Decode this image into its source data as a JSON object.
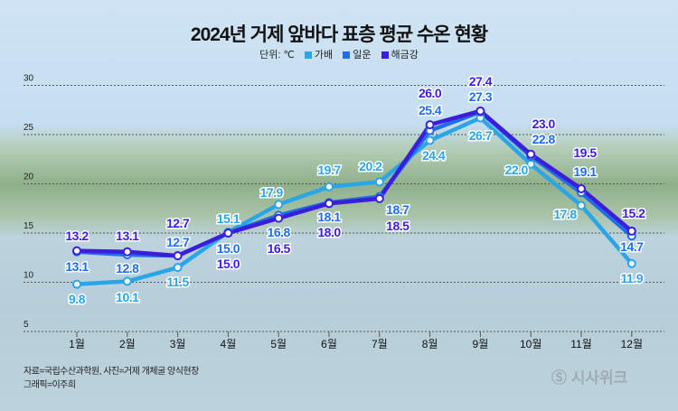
{
  "title": "2024년 거제 앞바다 표층 평균 수온 현황",
  "legend": {
    "unit_label": "단위: ℃",
    "items": [
      "가배",
      "일운",
      "해금강"
    ]
  },
  "footer": {
    "source": "자료=국립수산과학원, 사진=거제 개체굴 양식현장",
    "credit": "그래픽=이주희"
  },
  "logo": "시사위크",
  "chart_data": {
    "type": "line",
    "title": "2024년 거제 앞바다 표층 평균 수온 현황",
    "categories": [
      "1월",
      "2월",
      "3월",
      "4월",
      "5월",
      "6월",
      "7월",
      "8월",
      "9월",
      "10월",
      "11월",
      "12월"
    ],
    "ylim": [
      5,
      30
    ],
    "yticks": [
      5,
      10,
      15,
      20,
      25,
      30
    ],
    "grid": true,
    "legend_position": "top-center",
    "series": [
      {
        "name": "가배",
        "color": "#2aa6e8",
        "values": [
          9.8,
          10.1,
          11.5,
          15.1,
          17.9,
          19.7,
          20.2,
          24.4,
          26.7,
          22.0,
          17.8,
          11.9
        ]
      },
      {
        "name": "일운",
        "color": "#1f6ee8",
        "values": [
          13.1,
          12.8,
          12.7,
          15.0,
          16.8,
          18.1,
          18.7,
          25.4,
          27.3,
          22.8,
          19.1,
          14.7
        ]
      },
      {
        "name": "해금강",
        "color": "#3a1edc",
        "values": [
          13.2,
          13.1,
          12.7,
          15.0,
          16.5,
          18.0,
          18.5,
          26.0,
          27.4,
          23.0,
          19.5,
          15.2
        ]
      }
    ]
  }
}
